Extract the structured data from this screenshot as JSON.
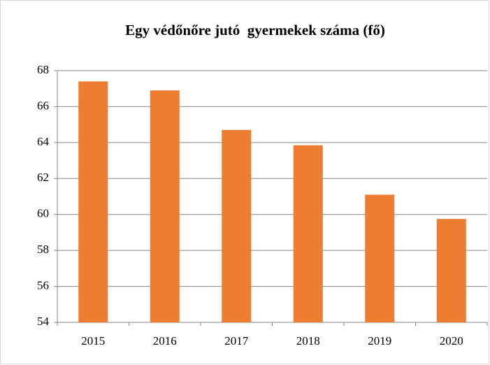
{
  "chart_data": {
    "type": "bar",
    "title": "Egy védőnőre jutó  gyermekek száma (fő)",
    "categories": [
      "2015",
      "2016",
      "2017",
      "2018",
      "2019",
      "2020"
    ],
    "values": [
      67.4,
      66.9,
      64.7,
      63.85,
      61.1,
      59.75
    ],
    "color": "#ed7d31",
    "ylim": [
      54,
      68
    ],
    "yticks": [
      54,
      56,
      58,
      60,
      62,
      64,
      66,
      68
    ],
    "grid": true
  }
}
